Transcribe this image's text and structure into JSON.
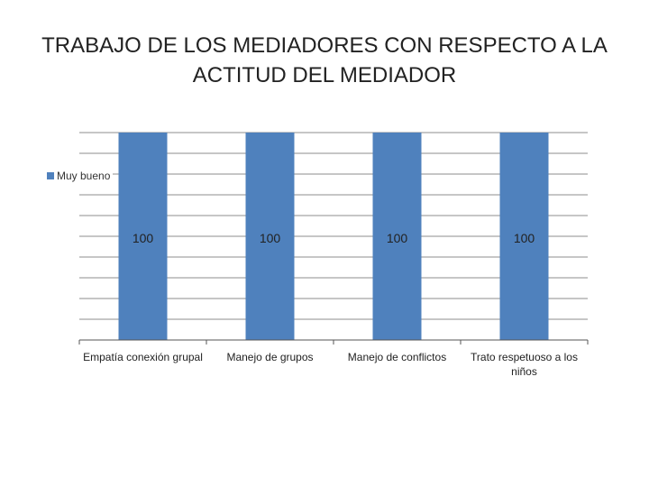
{
  "chart_data": {
    "type": "bar",
    "title_lines": [
      "TRABAJO DE LOS MEDIADORES CON RESPECTO A LA",
      "ACTITUD DEL MEDIADOR"
    ],
    "categories": [
      "Empatía conexión grupal",
      "Manejo de grupos",
      "Manejo de conflictos",
      "Trato respetuoso a los niños"
    ],
    "series": [
      {
        "name": "Muy bueno",
        "values": [
          100,
          100,
          100,
          100
        ],
        "color": "#4f81bd"
      }
    ],
    "data_labels": [
      "100",
      "100",
      "100",
      "100"
    ],
    "ylim": [
      0,
      100
    ],
    "grid": true,
    "legend_position": "left"
  }
}
